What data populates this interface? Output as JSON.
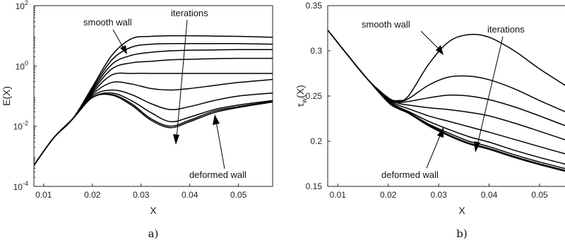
{
  "chart_data": [
    {
      "type": "line",
      "caption": "a)",
      "xlabel": "X",
      "ylabel": "E(X)",
      "yscale": "log",
      "xlim": [
        0.008,
        0.057
      ],
      "ylim_exp": [
        -4,
        2
      ],
      "xticks": [
        "0.01",
        "0.02",
        "0.03",
        "0.04",
        "0.05"
      ],
      "xtick_values": [
        0.01,
        0.02,
        0.03,
        0.04,
        0.05
      ],
      "yticks": [
        {
          "base": "10",
          "exp": "2",
          "value": 2
        },
        {
          "base": "10",
          "exp": "0",
          "value": 0
        },
        {
          "base": "10",
          "exp": "-2",
          "value": -2
        },
        {
          "base": "10",
          "exp": "-4",
          "value": -4
        }
      ],
      "grid": false,
      "annotations": {
        "smooth": "smooth wall",
        "iterations": "iterations",
        "deformed": "deformed wall"
      },
      "x": [
        0.008,
        0.012,
        0.016,
        0.02,
        0.024,
        0.028,
        0.032,
        0.036,
        0.04,
        0.045,
        0.05,
        0.057
      ],
      "series": [
        {
          "values": [
            -3.3,
            -2.4,
            -1.75,
            -0.7,
            0.35,
            0.9,
            0.98,
            1.0,
            1.0,
            0.99,
            0.98,
            0.95
          ]
        },
        {
          "values": [
            -3.3,
            -2.4,
            -1.75,
            -0.75,
            0.2,
            0.62,
            0.72,
            0.74,
            0.74,
            0.74,
            0.74,
            0.72
          ]
        },
        {
          "values": [
            -3.3,
            -2.4,
            -1.75,
            -0.8,
            0.05,
            0.35,
            0.45,
            0.5,
            0.52,
            0.53,
            0.54,
            0.54
          ]
        },
        {
          "values": [
            -3.3,
            -2.4,
            -1.75,
            -0.85,
            -0.1,
            0.1,
            0.15,
            0.2,
            0.22,
            0.24,
            0.25,
            0.25
          ]
        },
        {
          "values": [
            -3.3,
            -2.4,
            -1.75,
            -0.9,
            -0.3,
            -0.25,
            -0.25,
            -0.25,
            -0.25,
            -0.25,
            -0.25,
            -0.25
          ]
        },
        {
          "values": [
            -3.3,
            -2.4,
            -1.75,
            -0.95,
            -0.55,
            -0.6,
            -0.75,
            -0.8,
            -0.75,
            -0.65,
            -0.55,
            -0.45
          ]
        },
        {
          "values": [
            -3.3,
            -2.4,
            -1.75,
            -1.0,
            -0.8,
            -0.95,
            -1.25,
            -1.45,
            -1.35,
            -1.15,
            -1.0,
            -0.9
          ]
        },
        {
          "values": [
            -3.3,
            -2.4,
            -1.75,
            -1.05,
            -0.9,
            -1.15,
            -1.55,
            -1.85,
            -1.7,
            -1.45,
            -1.3,
            -1.15
          ]
        },
        {
          "values": [
            -3.3,
            -2.4,
            -1.75,
            -1.05,
            -0.95,
            -1.25,
            -1.75,
            -2.0,
            -1.8,
            -1.5,
            -1.35,
            -1.18
          ]
        },
        {
          "values": [
            -3.3,
            -2.4,
            -1.75,
            -1.05,
            -0.97,
            -1.3,
            -1.8,
            -2.05,
            -1.85,
            -1.55,
            -1.38,
            -1.2
          ]
        }
      ]
    },
    {
      "type": "line",
      "caption": "b)",
      "xlabel": "X",
      "ylabel_main": "τ",
      "ylabel_sub": "w",
      "ylabel_tail": "(X)",
      "xlim": [
        0.008,
        0.057
      ],
      "ylim": [
        0.15,
        0.35
      ],
      "xticks": [
        "0.01",
        "0.02",
        "0.03",
        "0.04",
        "0.05"
      ],
      "xtick_values": [
        0.01,
        0.02,
        0.03,
        0.04,
        0.05
      ],
      "yticks": [
        "0.35",
        "0.3",
        "0.25",
        "0.2",
        "0.15"
      ],
      "ytick_values": [
        0.35,
        0.3,
        0.25,
        0.2,
        0.15
      ],
      "grid": false,
      "annotations": {
        "smooth": "smooth wall",
        "iterations": "iterations",
        "deformed": "deformed wall"
      },
      "x": [
        0.008,
        0.012,
        0.016,
        0.02,
        0.022,
        0.024,
        0.028,
        0.032,
        0.036,
        0.04,
        0.045,
        0.05,
        0.057
      ],
      "series": [
        {
          "values": [
            0.323,
            0.295,
            0.268,
            0.248,
            0.245,
            0.25,
            0.285,
            0.31,
            0.318,
            0.315,
            0.3,
            0.28,
            0.255
          ]
        },
        {
          "values": [
            0.323,
            0.295,
            0.268,
            0.248,
            0.244,
            0.247,
            0.262,
            0.271,
            0.272,
            0.268,
            0.258,
            0.245,
            0.228
          ]
        },
        {
          "values": [
            0.323,
            0.295,
            0.268,
            0.248,
            0.243,
            0.244,
            0.248,
            0.251,
            0.25,
            0.246,
            0.238,
            0.228,
            0.213
          ]
        },
        {
          "values": [
            0.323,
            0.295,
            0.268,
            0.247,
            0.242,
            0.24,
            0.237,
            0.235,
            0.232,
            0.228,
            0.22,
            0.211,
            0.198
          ]
        },
        {
          "values": [
            0.323,
            0.295,
            0.268,
            0.246,
            0.24,
            0.236,
            0.228,
            0.222,
            0.216,
            0.21,
            0.202,
            0.194,
            0.183
          ]
        },
        {
          "values": [
            0.323,
            0.295,
            0.268,
            0.245,
            0.238,
            0.233,
            0.222,
            0.213,
            0.205,
            0.199,
            0.19,
            0.182,
            0.172
          ]
        },
        {
          "values": [
            0.323,
            0.295,
            0.268,
            0.244,
            0.237,
            0.232,
            0.219,
            0.209,
            0.2,
            0.194,
            0.185,
            0.177,
            0.167
          ]
        },
        {
          "values": [
            0.323,
            0.295,
            0.268,
            0.243,
            0.236,
            0.231,
            0.218,
            0.207,
            0.198,
            0.192,
            0.183,
            0.175,
            0.165
          ]
        },
        {
          "values": [
            0.323,
            0.295,
            0.268,
            0.243,
            0.236,
            0.231,
            0.217,
            0.206,
            0.197,
            0.191,
            0.182,
            0.174,
            0.164
          ]
        }
      ]
    }
  ]
}
